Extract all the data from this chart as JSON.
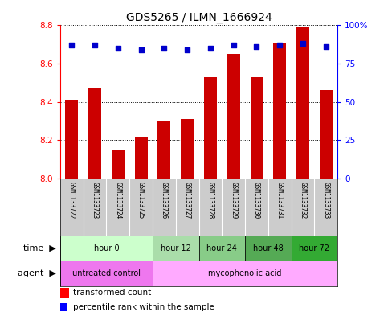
{
  "title": "GDS5265 / ILMN_1666924",
  "samples": [
    "GSM1133722",
    "GSM1133723",
    "GSM1133724",
    "GSM1133725",
    "GSM1133726",
    "GSM1133727",
    "GSM1133728",
    "GSM1133729",
    "GSM1133730",
    "GSM1133731",
    "GSM1133732",
    "GSM1133733"
  ],
  "bar_values": [
    8.41,
    8.47,
    8.15,
    8.22,
    8.3,
    8.31,
    8.53,
    8.65,
    8.53,
    8.71,
    8.79,
    8.46
  ],
  "percentile_values": [
    87,
    87,
    85,
    84,
    85,
    84,
    85,
    87,
    86,
    87,
    88,
    86
  ],
  "y_min": 8.0,
  "y_max": 8.8,
  "y_ticks": [
    8.0,
    8.2,
    8.4,
    8.6,
    8.8
  ],
  "y2_ticks": [
    0,
    25,
    50,
    75,
    100
  ],
  "bar_color": "#cc0000",
  "percentile_color": "#0000cc",
  "time_groups": [
    {
      "label": "hour 0",
      "start": 0,
      "end": 3,
      "color": "#ccffcc"
    },
    {
      "label": "hour 12",
      "start": 4,
      "end": 5,
      "color": "#aaffaa"
    },
    {
      "label": "hour 24",
      "start": 6,
      "end": 7,
      "color": "#88ee88"
    },
    {
      "label": "hour 48",
      "start": 8,
      "end": 9,
      "color": "#66cc66"
    },
    {
      "label": "hour 72",
      "start": 10,
      "end": 11,
      "color": "#44bb44"
    }
  ],
  "agent_groups": [
    {
      "label": "untreated control",
      "start": 0,
      "end": 3,
      "color": "#ee77ee"
    },
    {
      "label": "mycophenolic acid",
      "start": 4,
      "end": 11,
      "color": "#ffaaff"
    }
  ],
  "title_fontsize": 10,
  "tick_fontsize": 7.5,
  "legend_fontsize": 7.5,
  "sample_fontsize": 5.5
}
